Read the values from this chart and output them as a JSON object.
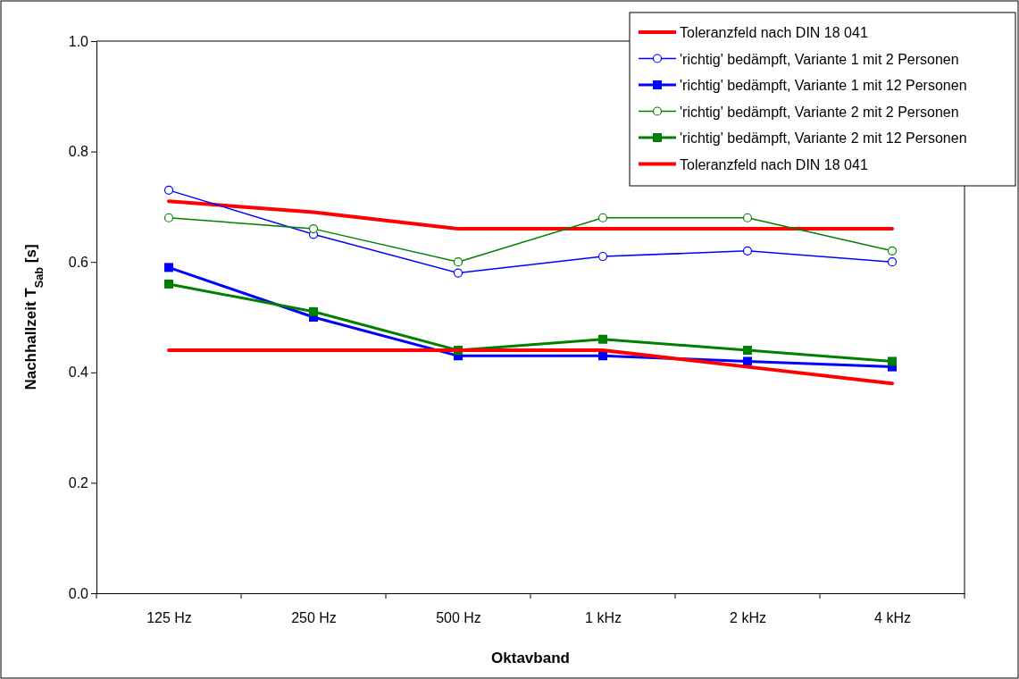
{
  "chart_data": {
    "type": "line",
    "xlabel": "Oktavband",
    "ylabel": "Nachhallzeit T$_{Sab}$ [s]",
    "categories": [
      "125 Hz",
      "250 Hz",
      "500 Hz",
      "1 kHz",
      "2 kHz",
      "4 kHz"
    ],
    "ylim": [
      0,
      1
    ],
    "yticks": [
      {
        "value": 0,
        "label": "0.0"
      },
      0.2,
      0.4,
      0.6,
      0.8,
      {
        "value": 1,
        "label": "1.0"
      }
    ],
    "grid": false,
    "legend": "top right",
    "line_style": "solid",
    "series": [
      {
        "name": "Toleranzfeld nach DIN 18 041",
        "color": "#ff0000",
        "marker": "none",
        "values": [
          0.71,
          0.69,
          0.66,
          0.66,
          0.66,
          0.66
        ]
      },
      {
        "name": "'richtig' bedämpft, Variante 1 mit 2 Personen",
        "color": "#0000ff",
        "marker": "circle",
        "values": [
          0.73,
          0.65,
          0.58,
          0.61,
          0.62,
          0.6
        ]
      },
      {
        "name": "'richtig' bedämpft, Variante 1 mit 12 Personen",
        "color": "#0000ff",
        "marker": "square",
        "values": [
          0.59,
          0.5,
          0.43,
          0.43,
          0.42,
          0.41
        ]
      },
      {
        "name": "'richtig' bedämpft, Variante 2 mit 2 Personen",
        "color": "#008000",
        "marker": "circle",
        "values": [
          0.68,
          0.66,
          0.6,
          0.68,
          0.68,
          0.62
        ]
      },
      {
        "name": "'richtig' bedämpft, Variante 2 mit 12 Personen",
        "color": "#008000",
        "marker": "square",
        "values": [
          0.56,
          0.51,
          0.44,
          0.46,
          0.44,
          0.42
        ]
      },
      {
        "name": "Toleranzfeld nach DIN 18 041",
        "color": "#ff0000",
        "marker": "none",
        "values": [
          0.44,
          0.44,
          0.44,
          0.44,
          0.41,
          0.38
        ]
      }
    ]
  }
}
